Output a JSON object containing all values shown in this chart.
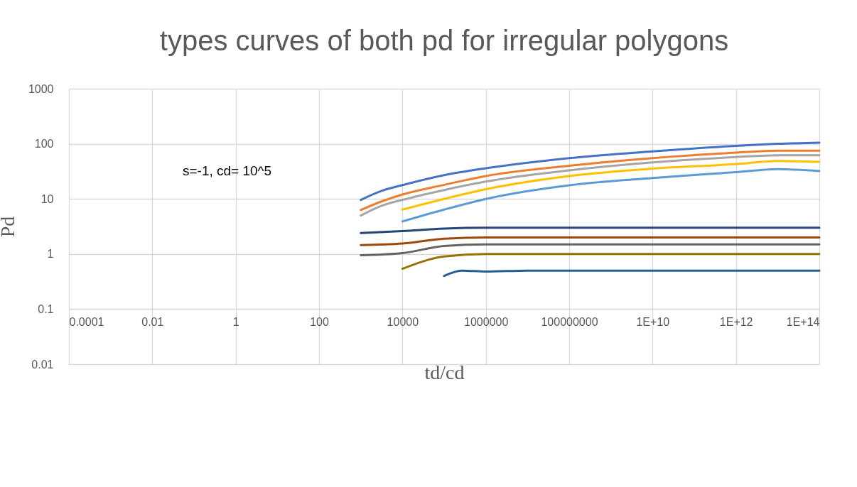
{
  "chart_data": {
    "type": "line",
    "title": "types curves of both pd for irregular polygons",
    "xlabel": "td/cd",
    "ylabel": "Pd",
    "log": "xy",
    "grid": true,
    "legend": false,
    "line_style": "solid",
    "marker": "none",
    "annotations": [
      "s=-1, cd= 10^5"
    ],
    "xlim": [
      0.0001,
      100000000000000.0
    ],
    "ylim": [
      0.01,
      1000
    ],
    "xticks": [
      0.0001,
      0.01,
      1,
      100,
      10000,
      1000000,
      100000000,
      {
        "value": 10000000000.0,
        "label": "1E+10"
      },
      {
        "value": 1000000000000.0,
        "label": "1E+12"
      },
      {
        "value": 100000000000000.0,
        "label": "1E+14"
      }
    ],
    "yticks": [
      0.01,
      0.1,
      1,
      10,
      100,
      1000
    ],
    "series": [
      {
        "color": "#4472c4",
        "x": [
          1000,
          3162,
          10000,
          100000,
          1000000,
          100000000,
          10000000000.0,
          1000000000000.0,
          10000000000000.0,
          100000000000000.0
        ],
        "values": [
          9.6,
          14,
          17.8,
          27,
          36,
          55,
          73,
          92,
          100,
          105
        ]
      },
      {
        "color": "#ed7d31",
        "x": [
          1000,
          3162,
          10000,
          100000,
          1000000,
          100000000,
          10000000000.0,
          1000000000000.0,
          10000000000000.0,
          100000000000000.0
        ],
        "values": [
          6.3,
          9,
          12,
          18,
          26,
          40,
          55,
          69,
          75,
          75
        ]
      },
      {
        "color": "#a5a5a5",
        "x": [
          1000,
          3162,
          10000,
          100000,
          1000000,
          100000000,
          10000000000.0,
          1000000000000.0,
          10000000000000.0,
          100000000000000.0
        ],
        "values": [
          5,
          7.5,
          9.6,
          14.5,
          20.6,
          33,
          46,
          57.5,
          62,
          62
        ]
      },
      {
        "color": "#ffc000",
        "x": [
          10000,
          100000,
          1000000,
          100000000,
          10000000000.0,
          1000000000000.0,
          10000000000000.0,
          100000000000000.0
        ],
        "values": [
          6.4,
          10,
          15,
          26,
          35.5,
          43,
          49,
          47
        ]
      },
      {
        "color": "#5b9bd5",
        "x": [
          10000,
          100000,
          1000000,
          100000000,
          10000000000.0,
          1000000000000.0,
          10000000000000.0,
          100000000000000.0
        ],
        "values": [
          3.9,
          6.4,
          10,
          17.7,
          24,
          30.6,
          34.7,
          32
        ]
      },
      {
        "color": "#264478",
        "x": [
          1000,
          10000,
          100000,
          1000000,
          100000000000000.0
        ],
        "values": [
          2.4,
          2.6,
          2.9,
          3,
          3
        ]
      },
      {
        "color": "#9e480e",
        "x": [
          1000,
          10000,
          100000,
          1000000,
          100000000000000.0
        ],
        "values": [
          1.45,
          1.55,
          1.9,
          2,
          2
        ]
      },
      {
        "color": "#636363",
        "x": [
          1000,
          10000,
          100000,
          1000000,
          100000000000000.0
        ],
        "values": [
          0.95,
          1.04,
          1.4,
          1.5,
          1.5
        ]
      },
      {
        "color": "#997300",
        "x": [
          10000,
          100000,
          1000000,
          100000000000000.0
        ],
        "values": [
          0.54,
          0.9,
          1,
          1
        ]
      },
      {
        "color": "#255e91",
        "x": [
          100000,
          263000,
          1000000,
          10000000,
          100000000000000.0
        ],
        "values": [
          0.4,
          0.5,
          0.48,
          0.5,
          0.5
        ]
      }
    ]
  }
}
